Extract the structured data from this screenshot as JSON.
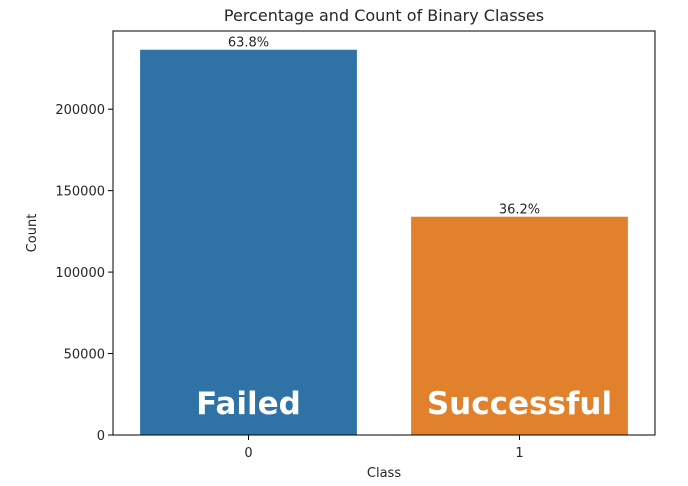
{
  "chart_data": {
    "type": "bar",
    "title": "Percentage and Count of Binary Classes",
    "xlabel": "Class",
    "ylabel": "Count",
    "categories": [
      "0",
      "1"
    ],
    "values": [
      236500,
      134000
    ],
    "percent_labels": [
      "63.8%",
      "36.2%"
    ],
    "bar_text": [
      "Failed",
      "Successful"
    ],
    "colors": [
      "#2f72a6",
      "#e1812c"
    ],
    "ylim": [
      0,
      248000
    ],
    "yticks": [
      0,
      50000,
      100000,
      150000,
      200000
    ],
    "ytick_labels": [
      "0",
      "50000",
      "100000",
      "150000",
      "200000"
    ],
    "grid": false,
    "legend": "none"
  }
}
